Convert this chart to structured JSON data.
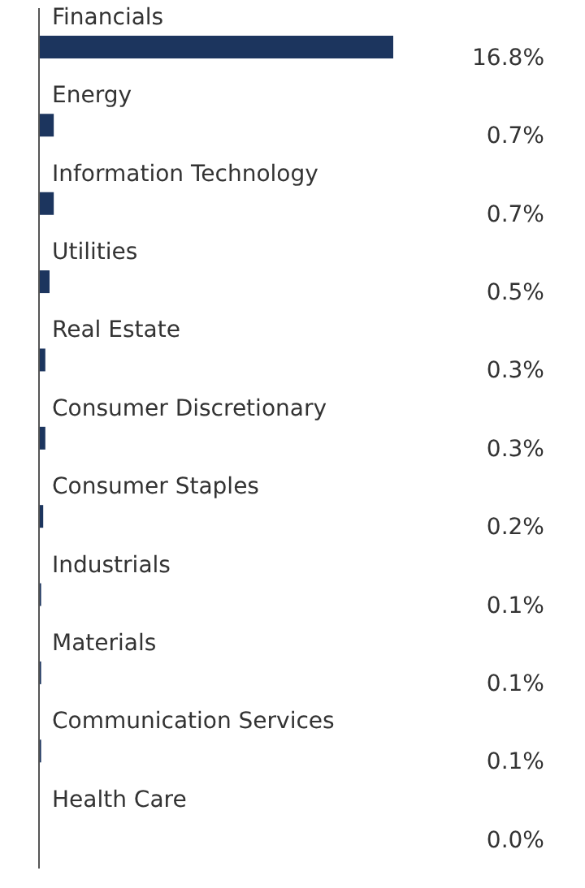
{
  "chart_data": {
    "type": "bar",
    "orientation": "horizontal",
    "categories": [
      "Financials",
      "Energy",
      "Information Technology",
      "Utilities",
      "Real Estate",
      "Consumer Discretionary",
      "Consumer Staples",
      "Industrials",
      "Materials",
      "Communication Services",
      "Health Care"
    ],
    "values": [
      16.8,
      0.7,
      0.7,
      0.5,
      0.3,
      0.3,
      0.2,
      0.1,
      0.1,
      0.1,
      0.0
    ],
    "value_labels": [
      "16.8%",
      "0.7%",
      "0.7%",
      "0.5%",
      "0.3%",
      "0.3%",
      "0.2%",
      "0.1%",
      "0.1%",
      "0.1%",
      "0.0%"
    ],
    "color": "#1c355e",
    "tick_labels": "y"
  }
}
